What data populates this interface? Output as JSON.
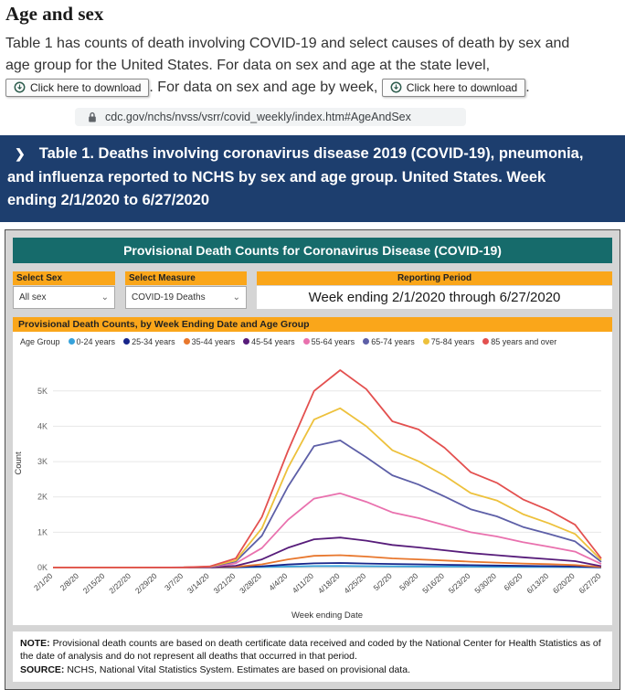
{
  "page": {
    "heading": "Age and sex",
    "intro_1": "Table 1 has counts of death involving COVID-19 and select causes of death by sex and age group for the United States.  For data on sex and age at the state level,",
    "download_button_1": "Click here to download",
    "intro_2": ".  For data on sex and age by week,",
    "download_button_2": "Click here to download",
    "intro_3": ".",
    "url": "cdc.gov/nchs/nvss/vsrr/covid_weekly/index.htm#AgeAndSex"
  },
  "banner": {
    "chevron": "❯",
    "text": "Table 1. Deaths involving coronavirus disease 2019 (COVID-19), pneumonia, and influenza reported to NCHS by sex and age group. United States. Week ending 2/1/2020 to 6/27/2020"
  },
  "dashboard": {
    "title": "Provisional Death Counts for Coronavirus Disease (COVID-19)",
    "select_sex_label": "Select Sex",
    "select_sex_value": "All sex",
    "select_measure_label": "Select Measure",
    "select_measure_value": "COVID-19 Deaths",
    "reporting_period_label": "Reporting Period",
    "reporting_period_value": "Week ending 2/1/2020 through 6/27/2020",
    "note_label": "NOTE:",
    "note_text": " Provisional death counts are based on death certificate data received and coded by the National Center for Health Statistics as of the date of analysis and do not represent all deaths that occurred in that period.",
    "source_label": "SOURCE:",
    "source_text": " NCHS, National Vital Statistics System. Estimates are based on provisional data."
  },
  "chart_data": {
    "type": "line",
    "title": "Provisional Death Counts, by Week Ending Date and Age Group",
    "legend_label": "Age Group",
    "xlabel": "Week ending Date",
    "ylabel": "Count",
    "ylim": [
      0,
      5900
    ],
    "yticks": [
      0,
      1000,
      2000,
      3000,
      4000,
      5000
    ],
    "ytick_labels": [
      "0K",
      "1K",
      "2K",
      "3K",
      "4K",
      "5K"
    ],
    "grid": true,
    "legend_position": "top",
    "x": [
      "2/1/20",
      "2/8/20",
      "2/15/20",
      "2/22/20",
      "2/29/20",
      "3/7/20",
      "3/14/20",
      "3/21/20",
      "3/28/20",
      "4/4/20",
      "4/11/20",
      "4/18/20",
      "4/25/20",
      "5/2/20",
      "5/9/20",
      "5/16/20",
      "5/23/20",
      "5/30/20",
      "6/6/20",
      "6/13/20",
      "6/20/20",
      "6/27/20"
    ],
    "series": [
      {
        "name": "0-24 years",
        "color": "#36A2DB",
        "values": [
          0,
          0,
          0,
          0,
          0,
          0,
          1,
          3,
          12,
          28,
          42,
          45,
          40,
          36,
          32,
          28,
          25,
          21,
          18,
          15,
          11,
          3
        ]
      },
      {
        "name": "25-34 years",
        "color": "#17258A",
        "values": [
          0,
          0,
          0,
          0,
          0,
          0,
          2,
          8,
          35,
          85,
          120,
          130,
          115,
          100,
          90,
          78,
          66,
          56,
          46,
          38,
          28,
          6
        ]
      },
      {
        "name": "35-44 years",
        "color": "#E8772D",
        "values": [
          0,
          0,
          0,
          0,
          0,
          1,
          3,
          20,
          90,
          230,
          330,
          350,
          310,
          260,
          230,
          200,
          165,
          140,
          115,
          95,
          70,
          15
        ]
      },
      {
        "name": "45-54 years",
        "color": "#571C7A",
        "values": [
          0,
          0,
          0,
          0,
          0,
          2,
          6,
          50,
          230,
          560,
          800,
          850,
          760,
          640,
          570,
          490,
          410,
          350,
          290,
          235,
          180,
          40
        ]
      },
      {
        "name": "55-64 years",
        "color": "#E971AE",
        "values": [
          0,
          0,
          0,
          0,
          1,
          3,
          12,
          120,
          550,
          1350,
          1950,
          2100,
          1860,
          1560,
          1400,
          1200,
          1000,
          880,
          720,
          590,
          450,
          100
        ]
      },
      {
        "name": "65-74 years",
        "color": "#5D5FA7",
        "values": [
          0,
          0,
          0,
          1,
          1,
          4,
          20,
          170,
          900,
          2290,
          3440,
          3600,
          3120,
          2610,
          2350,
          2010,
          1650,
          1450,
          1150,
          950,
          740,
          160
        ]
      },
      {
        "name": "75-84 years",
        "color": "#EDC13C",
        "values": [
          0,
          0,
          1,
          1,
          2,
          5,
          25,
          200,
          1110,
          2820,
          4190,
          4510,
          4000,
          3320,
          3010,
          2600,
          2110,
          1900,
          1510,
          1250,
          950,
          210
        ]
      },
      {
        "name": "85 years and over",
        "color": "#E3504F",
        "values": [
          0,
          1,
          1,
          1,
          2,
          6,
          30,
          260,
          1430,
          3300,
          5000,
          5590,
          5050,
          4140,
          3910,
          3390,
          2700,
          2400,
          1930,
          1620,
          1210,
          260
        ]
      }
    ]
  }
}
